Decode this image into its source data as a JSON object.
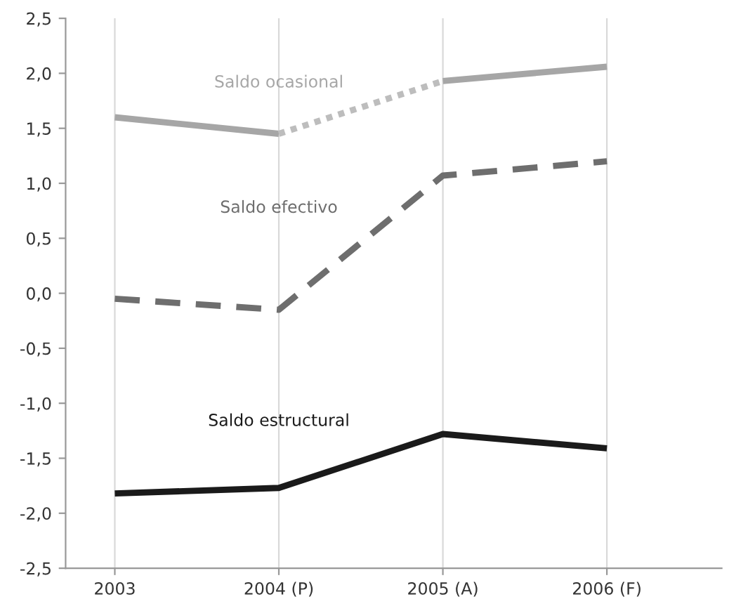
{
  "chart_data": {
    "type": "line",
    "categories": [
      "2003",
      "2004 (P)",
      "2005 (A)",
      "2006 (F)"
    ],
    "series": [
      {
        "name": "Saldo ocasional",
        "color": "#a6a6a6",
        "line_style": "solid",
        "values": [
          1.6,
          1.45,
          null,
          null
        ]
      },
      {
        "color": "#bdbdbd",
        "line_style": "dotted",
        "values": [
          null,
          1.45,
          1.93,
          null
        ]
      },
      {
        "color": "#a6a6a6",
        "line_style": "solid",
        "values": [
          null,
          null,
          1.93,
          2.06
        ]
      },
      {
        "name": "Saldo efectivo",
        "color": "#6e6e6e",
        "line_style": "dashed",
        "values": [
          -0.05,
          -0.15,
          1.07,
          1.2
        ]
      },
      {
        "name": "Saldo estructural",
        "color": "#1a1a1a",
        "line_style": "solid",
        "values": [
          -1.82,
          -1.77,
          -1.28,
          -1.41
        ]
      }
    ],
    "ylim": [
      -2.5,
      2.5
    ],
    "yticks": [
      {
        "value": -2.5,
        "label": "-2,5"
      },
      {
        "value": -2,
        "label": "-2,0"
      },
      {
        "value": -1.5,
        "label": "-1,5"
      },
      {
        "value": -1,
        "label": "-1,0"
      },
      {
        "value": -0.5,
        "label": "-0,5"
      },
      {
        "value": 0,
        "label": "0,0"
      },
      {
        "value": 0.5,
        "label": "0,5"
      },
      {
        "value": 1,
        "label": "1,0"
      },
      {
        "value": 1.5,
        "label": "1,5"
      },
      {
        "value": 2,
        "label": "2,0"
      },
      {
        "value": 2.5,
        "label": "2,5"
      }
    ],
    "grid": "x",
    "marker": "none"
  }
}
